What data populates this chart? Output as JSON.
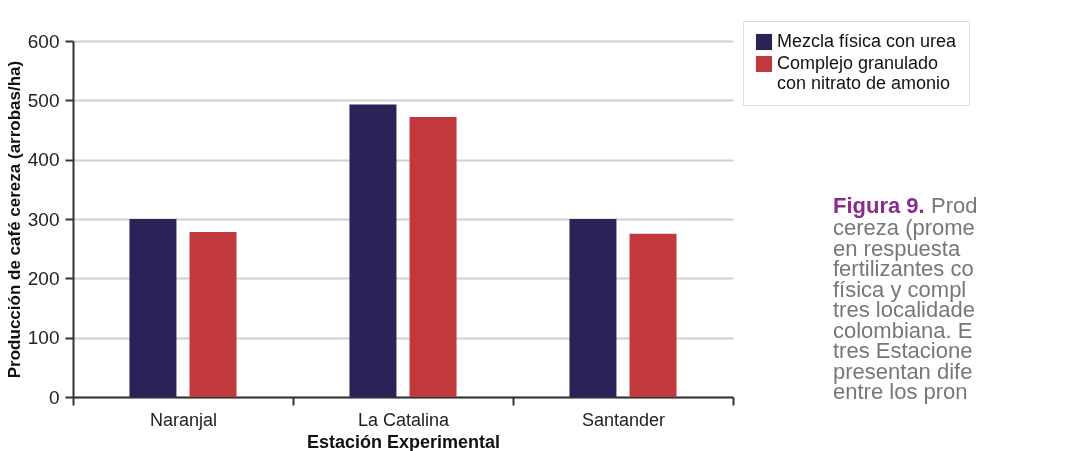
{
  "chart_data": {
    "type": "bar",
    "categories": [
      "Naranjal",
      "La Catalina",
      "Santander"
    ],
    "series": [
      {
        "name": "Mezcla física con urea",
        "color": "#2b2358",
        "values": [
          300,
          493,
          300
        ]
      },
      {
        "name": "Complejo granulado con nitrato de amonio",
        "color": "#c1393c",
        "values": [
          278,
          472,
          275
        ]
      }
    ],
    "xlabel": "Estación Experimental",
    "ylabel": "Producción de café cereza (arrobas/ha)",
    "ylim": [
      0,
      600
    ],
    "yticks": [
      0,
      100,
      200,
      300,
      400,
      500,
      600
    ],
    "grid": "y",
    "legend": "top right",
    "annotations": [
      "Figura 9.",
      "Prod",
      "cereza (prome\nen respuesta\nfertilizantes co\nfísica y compl\ntres localidade\ncolombiana. E\ntres Estacione\npresentan dife\nentre los pron"
    ]
  }
}
